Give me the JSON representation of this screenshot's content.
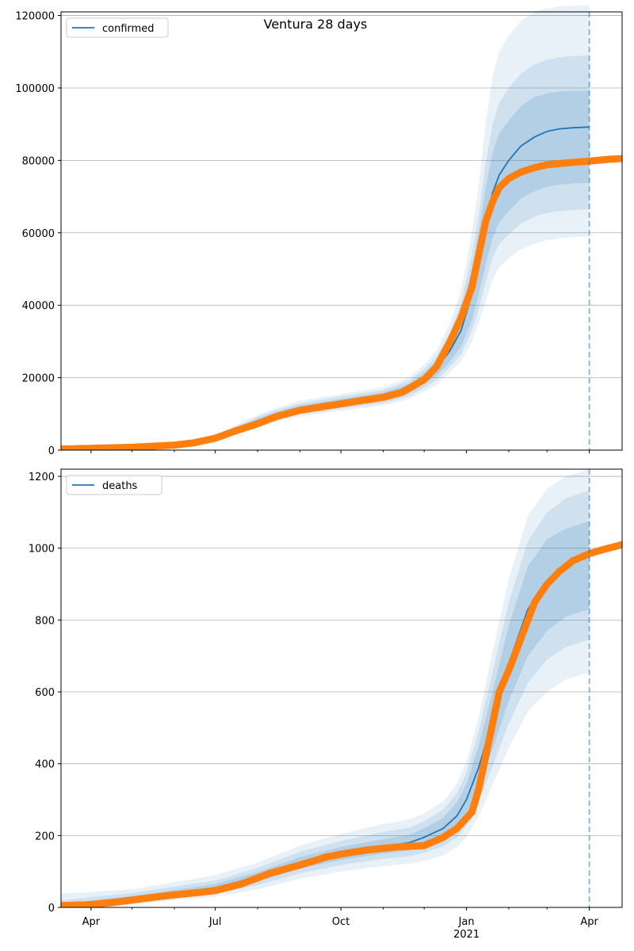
{
  "title": "Ventura 28 days",
  "colors": {
    "model": "#1f77b4",
    "observed": "#ff7f0e",
    "band": "#1f77b4",
    "grid": "#b0b0b0"
  },
  "chart_data": [
    {
      "type": "line",
      "name": "confirmed",
      "legend": "confirmed",
      "legend_position": "upper-left",
      "grid": "horizontal",
      "x_range": [
        "2020-03-10",
        "2021-04-25"
      ],
      "ylim": [
        0,
        121000
      ],
      "yticks": [
        0,
        20000,
        40000,
        60000,
        80000,
        100000,
        120000
      ],
      "ytick_labels": [
        "0",
        "20000",
        "40000",
        "60000",
        "80000",
        "100000",
        "120000"
      ],
      "forecast_date": "2021-04-01",
      "model": {
        "x": [
          "2020-03-10",
          "2020-05-01",
          "2020-06-01",
          "2020-06-20",
          "2020-07-01",
          "2020-07-15",
          "2020-08-01",
          "2020-08-15",
          "2020-09-01",
          "2020-10-01",
          "2020-11-01",
          "2020-11-20",
          "2020-12-01",
          "2020-12-10",
          "2020-12-20",
          "2020-12-28",
          "2021-01-05",
          "2021-01-10",
          "2021-01-15",
          "2021-01-20",
          "2021-01-25",
          "2021-02-01",
          "2021-02-10",
          "2021-02-20",
          "2021-03-01",
          "2021-03-10",
          "2021-03-20",
          "2021-04-01"
        ],
        "y": [
          300,
          700,
          1200,
          2000,
          3300,
          5500,
          8000,
          9800,
          11400,
          13100,
          14800,
          17000,
          19700,
          22500,
          27500,
          33000,
          43000,
          52000,
          62000,
          71000,
          76000,
          80000,
          84000,
          86500,
          88000,
          88700,
          89000,
          89200
        ],
        "band_inner": [
          [
            300,
            300
          ],
          [
            650,
            750
          ],
          [
            1100,
            1300
          ],
          [
            1800,
            2200
          ],
          [
            3000,
            3600
          ],
          [
            5000,
            6000
          ],
          [
            7400,
            8700
          ],
          [
            9000,
            10600
          ],
          [
            10500,
            12300
          ],
          [
            12100,
            14100
          ],
          [
            13700,
            15900
          ],
          [
            15700,
            18300
          ],
          [
            18200,
            21300
          ],
          [
            20500,
            24500
          ],
          [
            24500,
            30500
          ],
          [
            28500,
            38000
          ],
          [
            36000,
            50000
          ],
          [
            43000,
            60000
          ],
          [
            51000,
            72000
          ],
          [
            58500,
            82000
          ],
          [
            63000,
            87500
          ],
          [
            66000,
            91000
          ],
          [
            69500,
            95000
          ],
          [
            71500,
            97500
          ],
          [
            72700,
            98500
          ],
          [
            73300,
            99000
          ],
          [
            73600,
            99200
          ],
          [
            73800,
            99300
          ]
        ],
        "band_mid": [
          [
            250,
            350
          ],
          [
            600,
            800
          ],
          [
            1000,
            1400
          ],
          [
            1650,
            2350
          ],
          [
            2800,
            3800
          ],
          [
            4600,
            6400
          ],
          [
            6900,
            9200
          ],
          [
            8500,
            11100
          ],
          [
            9900,
            12900
          ],
          [
            11500,
            14800
          ],
          [
            13000,
            16600
          ],
          [
            14900,
            19200
          ],
          [
            17200,
            22300
          ],
          [
            19300,
            25800
          ],
          [
            23000,
            32500
          ],
          [
            26500,
            40500
          ],
          [
            33000,
            54000
          ],
          [
            39000,
            65000
          ],
          [
            46000,
            79000
          ],
          [
            53000,
            90000
          ],
          [
            57000,
            96000
          ],
          [
            59500,
            100000
          ],
          [
            62500,
            104000
          ],
          [
            64500,
            106500
          ],
          [
            65500,
            107800
          ],
          [
            66000,
            108500
          ],
          [
            66300,
            108800
          ],
          [
            66500,
            109000
          ]
        ],
        "band_outer": [
          [
            200,
            400
          ],
          [
            550,
            850
          ],
          [
            900,
            1500
          ],
          [
            1500,
            2500
          ],
          [
            2600,
            4000
          ],
          [
            4200,
            6800
          ],
          [
            6400,
            9700
          ],
          [
            8000,
            11700
          ],
          [
            9300,
            13600
          ],
          [
            10900,
            15500
          ],
          [
            12300,
            17400
          ],
          [
            14100,
            20100
          ],
          [
            16200,
            23500
          ],
          [
            18000,
            27500
          ],
          [
            21500,
            35000
          ],
          [
            24500,
            44000
          ],
          [
            30000,
            60000
          ],
          [
            35000,
            73000
          ],
          [
            41000,
            90000
          ],
          [
            47000,
            103000
          ],
          [
            50500,
            110000
          ],
          [
            53000,
            114500
          ],
          [
            55500,
            118500
          ],
          [
            57000,
            121000
          ],
          [
            58000,
            122000
          ],
          [
            58500,
            122500
          ],
          [
            58800,
            122700
          ],
          [
            59000,
            122800
          ]
        ]
      },
      "observed": {
        "x": [
          "2020-03-10",
          "2020-04-01",
          "2020-05-01",
          "2020-06-01",
          "2020-06-15",
          "2020-07-01",
          "2020-07-15",
          "2020-08-01",
          "2020-08-15",
          "2020-09-01",
          "2020-10-01",
          "2020-11-01",
          "2020-11-15",
          "2020-12-01",
          "2020-12-10",
          "2020-12-20",
          "2020-12-28",
          "2021-01-05",
          "2021-01-10",
          "2021-01-15",
          "2021-01-20",
          "2021-01-25",
          "2021-02-01",
          "2021-02-10",
          "2021-02-20",
          "2021-03-01",
          "2021-03-15",
          "2021-04-01",
          "2021-04-15",
          "2021-04-25"
        ],
        "y": [
          300,
          500,
          800,
          1400,
          2000,
          3300,
          5200,
          7300,
          9300,
          11000,
          12800,
          14600,
          16000,
          19500,
          23000,
          30000,
          36500,
          45000,
          54000,
          63000,
          68500,
          72500,
          75000,
          76800,
          78000,
          78800,
          79300,
          79800,
          80300,
          80500
        ]
      }
    },
    {
      "type": "line",
      "name": "deaths",
      "legend": "deaths",
      "legend_position": "upper-left",
      "grid": "horizontal",
      "x_range": [
        "2020-03-10",
        "2021-04-25"
      ],
      "ylim": [
        0,
        1220
      ],
      "yticks": [
        0,
        200,
        400,
        600,
        800,
        1000,
        1200
      ],
      "ytick_labels": [
        "0",
        "200",
        "400",
        "600",
        "800",
        "1000",
        "1200"
      ],
      "xticks": [
        {
          "date": "2020-04-01",
          "label": "Apr"
        },
        {
          "date": "2020-07-01",
          "label": "Jul"
        },
        {
          "date": "2020-10-01",
          "label": "Oct"
        },
        {
          "date": "2021-01-01",
          "label": "Jan",
          "sublabel": "2021"
        },
        {
          "date": "2021-04-01",
          "label": "Apr"
        }
      ],
      "forecast_date": "2021-04-01",
      "model": {
        "x": [
          "2020-03-10",
          "2020-05-01",
          "2020-06-01",
          "2020-07-01",
          "2020-08-01",
          "2020-09-01",
          "2020-10-01",
          "2020-11-01",
          "2020-11-20",
          "2020-12-01",
          "2020-12-15",
          "2020-12-25",
          "2021-01-01",
          "2021-01-10",
          "2021-01-20",
          "2021-02-01",
          "2021-02-15",
          "2021-03-01",
          "2021-03-15",
          "2021-04-01"
        ],
        "y": [
          5,
          25,
          40,
          55,
          85,
          125,
          150,
          170,
          180,
          195,
          220,
          255,
          300,
          390,
          520,
          680,
          830,
          910,
          950,
          980
        ],
        "band_inner": [
          [
            3,
            10
          ],
          [
            18,
            32
          ],
          [
            32,
            48
          ],
          [
            45,
            65
          ],
          [
            72,
            98
          ],
          [
            108,
            140
          ],
          [
            132,
            168
          ],
          [
            150,
            190
          ],
          [
            158,
            202
          ],
          [
            170,
            220
          ],
          [
            190,
            250
          ],
          [
            218,
            292
          ],
          [
            255,
            345
          ],
          [
            330,
            450
          ],
          [
            440,
            600
          ],
          [
            575,
            785
          ],
          [
            700,
            950
          ],
          [
            770,
            1025
          ],
          [
            810,
            1055
          ],
          [
            830,
            1075
          ]
        ],
        "band_mid": [
          [
            2,
            20
          ],
          [
            14,
            40
          ],
          [
            28,
            58
          ],
          [
            38,
            75
          ],
          [
            62,
            110
          ],
          [
            95,
            155
          ],
          [
            118,
            185
          ],
          [
            135,
            210
          ],
          [
            142,
            222
          ],
          [
            152,
            240
          ],
          [
            170,
            272
          ],
          [
            195,
            318
          ],
          [
            228,
            375
          ],
          [
            295,
            490
          ],
          [
            392,
            655
          ],
          [
            512,
            850
          ],
          [
            625,
            1020
          ],
          [
            690,
            1100
          ],
          [
            725,
            1140
          ],
          [
            745,
            1160
          ]
        ],
        "band_outer": [
          [
            1,
            38
          ],
          [
            8,
            50
          ],
          [
            20,
            70
          ],
          [
            30,
            90
          ],
          [
            50,
            125
          ],
          [
            80,
            172
          ],
          [
            100,
            205
          ],
          [
            115,
            232
          ],
          [
            122,
            245
          ],
          [
            130,
            262
          ],
          [
            145,
            295
          ],
          [
            168,
            345
          ],
          [
            195,
            405
          ],
          [
            255,
            530
          ],
          [
            340,
            710
          ],
          [
            445,
            915
          ],
          [
            545,
            1090
          ],
          [
            600,
            1165
          ],
          [
            635,
            1200
          ],
          [
            655,
            1220
          ]
        ]
      },
      "observed": {
        "x": [
          "2020-03-10",
          "2020-04-01",
          "2020-04-20",
          "2020-05-10",
          "2020-06-01",
          "2020-06-20",
          "2020-07-01",
          "2020-07-20",
          "2020-08-10",
          "2020-09-01",
          "2020-09-20",
          "2020-10-01",
          "2020-10-20",
          "2020-11-10",
          "2020-12-01",
          "2020-12-15",
          "2020-12-25",
          "2021-01-05",
          "2021-01-10",
          "2021-01-15",
          "2021-01-20",
          "2021-01-25",
          "2021-02-01",
          "2021-02-10",
          "2021-02-20",
          "2021-03-01",
          "2021-03-10",
          "2021-03-20",
          "2021-04-01",
          "2021-04-10",
          "2021-04-25"
        ],
        "y": [
          5,
          8,
          15,
          25,
          35,
          42,
          47,
          65,
          95,
          118,
          140,
          148,
          160,
          168,
          172,
          195,
          220,
          265,
          330,
          420,
          510,
          600,
          660,
          750,
          850,
          900,
          935,
          965,
          985,
          995,
          1010
        ]
      }
    }
  ]
}
